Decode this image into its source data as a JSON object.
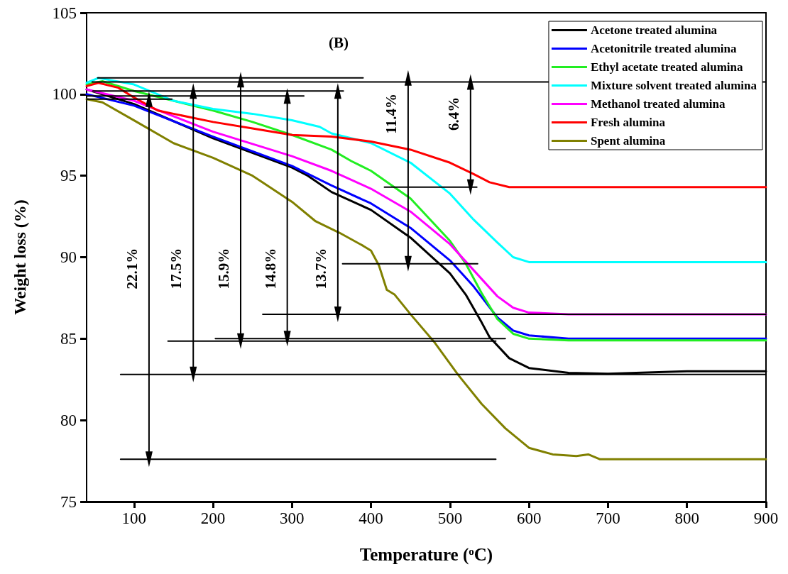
{
  "chart_data": {
    "type": "line",
    "title": "(B)",
    "xlabel": "Temperature ($^{o}$C)",
    "ylabel": "Weight loss (%)",
    "xlim": [
      40,
      900
    ],
    "ylim": [
      75,
      105
    ],
    "xticks": [
      100,
      200,
      300,
      400,
      500,
      600,
      700,
      800,
      900
    ],
    "yticks": [
      75,
      80,
      85,
      90,
      95,
      100,
      105
    ],
    "grid": false,
    "legend": "top right",
    "marker": "none",
    "line_style": "solid",
    "series": [
      {
        "name": "Acetone treated alumina",
        "color": "#000000",
        "x": [
          40,
          100,
          200,
          300,
          320,
          350,
          400,
          450,
          500,
          520,
          540,
          550,
          575,
          600,
          650,
          700,
          800,
          900
        ],
        "values": [
          100.3,
          99.4,
          97.3,
          95.5,
          95.0,
          94.0,
          92.9,
          91.2,
          89.0,
          87.7,
          86.0,
          85.1,
          83.8,
          83.2,
          82.9,
          82.85,
          83.0,
          83.0
        ]
      },
      {
        "name": "Acetonitrile treated alumina",
        "color": "#0000ff",
        "x": [
          40,
          100,
          200,
          300,
          350,
          400,
          450,
          500,
          530,
          560,
          580,
          600,
          650,
          900
        ],
        "values": [
          100.0,
          99.3,
          97.4,
          95.6,
          94.4,
          93.3,
          91.8,
          89.8,
          88.2,
          86.3,
          85.5,
          85.2,
          85.0,
          85.0
        ]
      },
      {
        "name": "Ethyl acetate treated alumina",
        "color": "#22ee22",
        "x": [
          40,
          60,
          100,
          150,
          200,
          250,
          300,
          350,
          375,
          400,
          450,
          500,
          520,
          540,
          560,
          580,
          600,
          650,
          900
        ],
        "values": [
          100.6,
          100.8,
          100.2,
          99.6,
          99.0,
          98.3,
          97.5,
          96.6,
          95.9,
          95.3,
          93.6,
          91.0,
          89.6,
          87.8,
          86.2,
          85.3,
          85.0,
          84.9,
          84.9
        ]
      },
      {
        "name": "Mixture solvent treated alumina",
        "color": "#00ffff",
        "x": [
          40,
          55,
          100,
          150,
          200,
          250,
          300,
          335,
          350,
          400,
          450,
          500,
          530,
          560,
          580,
          600,
          900
        ],
        "values": [
          100.7,
          101.0,
          100.6,
          99.6,
          99.1,
          98.8,
          98.4,
          98.0,
          97.6,
          97.0,
          95.8,
          93.9,
          92.3,
          90.9,
          90.0,
          89.7,
          89.7
        ]
      },
      {
        "name": "Methanol treated alumina",
        "color": "#ff00ff",
        "x": [
          40,
          100,
          200,
          300,
          350,
          400,
          450,
          500,
          530,
          560,
          580,
          600,
          650,
          900
        ],
        "values": [
          100.3,
          99.6,
          97.7,
          96.2,
          95.3,
          94.2,
          92.8,
          90.8,
          89.2,
          87.6,
          86.9,
          86.6,
          86.5,
          86.5
        ]
      },
      {
        "name": "Fresh alumina",
        "color": "#ff0000",
        "x": [
          40,
          55,
          80,
          100,
          130,
          150,
          200,
          250,
          300,
          350,
          400,
          450,
          500,
          530,
          550,
          575,
          600,
          900
        ],
        "values": [
          100.5,
          100.7,
          100.4,
          99.8,
          99.0,
          98.8,
          98.3,
          97.9,
          97.5,
          97.4,
          97.1,
          96.6,
          95.8,
          95.1,
          94.6,
          94.3,
          94.3,
          94.3
        ]
      },
      {
        "name": "Spent alumina",
        "color": "#808000",
        "x": [
          40,
          60,
          100,
          150,
          200,
          250,
          300,
          330,
          360,
          390,
          400,
          410,
          420,
          430,
          450,
          480,
          510,
          540,
          570,
          600,
          630,
          660,
          675,
          690,
          900
        ],
        "values": [
          99.7,
          99.5,
          98.4,
          97.0,
          96.1,
          95.0,
          93.4,
          92.2,
          91.5,
          90.7,
          90.4,
          89.5,
          88.0,
          87.7,
          86.5,
          84.8,
          82.8,
          81.0,
          79.5,
          78.3,
          77.9,
          77.8,
          77.9,
          77.6,
          77.6
        ]
      },
      {
        "color": "#000000",
        "x": [
          54,
          390
        ],
        "values": [
          101.0,
          101.0
        ]
      },
      {
        "color": "#000000",
        "x": [
          47,
          900
        ],
        "values": [
          100.75,
          100.75
        ]
      },
      {
        "color": "#000000",
        "x": [
          48,
          365
        ],
        "values": [
          100.2,
          100.2
        ]
      },
      {
        "color": "#000000",
        "x": [
          40,
          315
        ],
        "values": [
          99.9,
          99.9
        ]
      },
      {
        "color": "#000000",
        "x": [
          40,
          148
        ],
        "values": [
          99.7,
          99.7
        ]
      },
      {
        "color": "#000000",
        "x": [
          417,
          534
        ],
        "values": [
          94.3,
          94.3
        ]
      },
      {
        "color": "#000000",
        "x": [
          364,
          535
        ],
        "values": [
          89.6,
          89.6
        ]
      },
      {
        "color": "#000000",
        "x": [
          263,
          900
        ],
        "values": [
          86.5,
          86.5
        ]
      },
      {
        "color": "#000000",
        "x": [
          203,
          570
        ],
        "values": [
          85.0,
          85.0
        ]
      },
      {
        "color": "#000000",
        "x": [
          143,
          558
        ],
        "values": [
          84.85,
          84.85
        ]
      },
      {
        "color": "#000000",
        "x": [
          83,
          900
        ],
        "values": [
          82.8,
          82.8
        ]
      },
      {
        "color": "#000000",
        "x": [
          83,
          558
        ],
        "values": [
          77.6,
          77.6
        ]
      },
      {
        "color": "#000000",
        "marker": "triangle",
        "x": [
          119,
          119
        ],
        "values": [
          99.7,
          77.6
        ]
      },
      {
        "color": "#000000",
        "marker": "triangle",
        "x": [
          175,
          175
        ],
        "values": [
          100.2,
          82.8
        ]
      },
      {
        "color": "#000000",
        "marker": "triangle",
        "x": [
          235,
          235
        ],
        "values": [
          100.9,
          84.85
        ]
      },
      {
        "color": "#000000",
        "marker": "triangle",
        "x": [
          294,
          294
        ],
        "values": [
          99.9,
          85.0
        ]
      },
      {
        "color": "#000000",
        "marker": "triangle",
        "x": [
          358,
          358
        ],
        "values": [
          100.2,
          86.5
        ]
      },
      {
        "color": "#000000",
        "marker": "triangle",
        "x": [
          447,
          447
        ],
        "values": [
          101.0,
          89.6
        ]
      },
      {
        "color": "#000000",
        "marker": "triangle",
        "x": [
          526,
          526
        ],
        "values": [
          100.75,
          94.3
        ]
      }
    ],
    "annotations": [
      {
        "text": "22.1%",
        "x": 119,
        "y": 89.3
      },
      {
        "text": "17.5%",
        "x": 175,
        "y": 89.3
      },
      {
        "text": "15.9%",
        "x": 235,
        "y": 89.3
      },
      {
        "text": "14.8%",
        "x": 294,
        "y": 89.3
      },
      {
        "text": "13.7%",
        "x": 358,
        "y": 89.3
      },
      {
        "text": "11.4%",
        "x": 447,
        "y": 98.8
      },
      {
        "text": "6.4%",
        "x": 526,
        "y": 98.8
      }
    ]
  }
}
